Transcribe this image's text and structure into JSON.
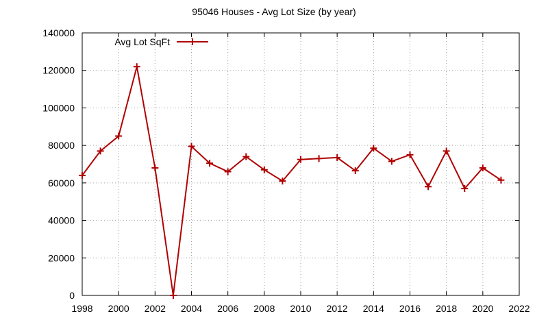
{
  "chart_data": {
    "type": "line",
    "title": "95046 Houses - Avg Lot Size (by year)",
    "xlabel": "",
    "ylabel": "",
    "xlim": [
      1998,
      2022
    ],
    "ylim": [
      0,
      140000
    ],
    "x_ticks": [
      1998,
      2000,
      2002,
      2004,
      2006,
      2008,
      2010,
      2012,
      2014,
      2016,
      2018,
      2020,
      2022
    ],
    "y_ticks": [
      0,
      20000,
      40000,
      60000,
      80000,
      100000,
      120000,
      140000
    ],
    "grid": true,
    "legend_position": "top-left",
    "series": [
      {
        "name": "Avg Lot SqFt",
        "color": "#b00000",
        "marker": "plus",
        "x": [
          1998,
          1999,
          2000,
          2001,
          2002,
          2003,
          2004,
          2005,
          2006,
          2007,
          2008,
          2009,
          2010,
          2011,
          2012,
          2013,
          2014,
          2015,
          2016,
          2017,
          2018,
          2019,
          2020,
          2021
        ],
        "y": [
          64000,
          77000,
          85000,
          122000,
          68000,
          0,
          79500,
          70500,
          66000,
          74000,
          67000,
          61000,
          72500,
          73000,
          73500,
          66500,
          78500,
          71500,
          75000,
          58000,
          77000,
          57000,
          68000,
          61500
        ]
      }
    ]
  }
}
